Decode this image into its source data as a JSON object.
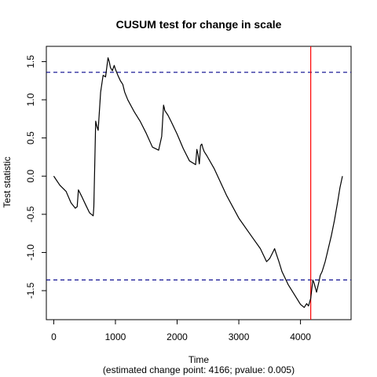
{
  "chart_data": {
    "type": "line",
    "title": "CUSUM test for change in scale",
    "xlabel": "Time",
    "subtitle": "(estimated change point: 4166; pvalue: 0.005)",
    "ylabel": "Test statistic",
    "xlim": [
      -120,
      4820
    ],
    "ylim": [
      -1.88,
      1.7
    ],
    "x_ticks": [
      0,
      1000,
      2000,
      3000,
      4000
    ],
    "y_ticks": [
      -1.5,
      -1.0,
      -0.5,
      0.0,
      0.5,
      1.0,
      1.5
    ],
    "x_tick_labels": [
      "0",
      "1000",
      "2000",
      "3000",
      "4000"
    ],
    "y_tick_labels": [
      "-1.5",
      "-1.0",
      "-0.5",
      "0.0",
      "0.5",
      "1.0",
      "1.5"
    ],
    "critical_value_upper": 1.36,
    "critical_value_lower": -1.36,
    "change_point": 4166,
    "line_color": "#000000",
    "threshold_color": "#00008B",
    "changepoint_color": "#FF0000",
    "series": [
      {
        "x": [
          0,
          100,
          200,
          280,
          350,
          380,
          400,
          450,
          520,
          580,
          640,
          650,
          680,
          700,
          720,
          760,
          800,
          840,
          880,
          900,
          920,
          950,
          980,
          1000,
          1040,
          1080,
          1120,
          1150,
          1200,
          1300,
          1400,
          1500,
          1600,
          1700,
          1750,
          1780,
          1790,
          1800,
          1850,
          1900,
          2000,
          2100,
          2200,
          2300,
          2320,
          2340,
          2360,
          2380,
          2400,
          2420,
          2440,
          2480,
          2600,
          2800,
          3000,
          3200,
          3350,
          3450,
          3500,
          3550,
          3580,
          3600,
          3650,
          3700,
          3800,
          3900,
          4000,
          4060,
          4100,
          4130,
          4166,
          4200,
          4220,
          4260,
          4300,
          4320,
          4350,
          4400,
          4450,
          4500,
          4550,
          4600,
          4640,
          4680
        ],
        "y": [
          0.0,
          -0.12,
          -0.2,
          -0.35,
          -0.42,
          -0.4,
          -0.18,
          -0.26,
          -0.38,
          -0.48,
          -0.52,
          -0.4,
          0.72,
          0.65,
          0.6,
          1.1,
          1.32,
          1.3,
          1.55,
          1.5,
          1.42,
          1.38,
          1.45,
          1.4,
          1.32,
          1.25,
          1.2,
          1.1,
          1.0,
          0.85,
          0.72,
          0.56,
          0.38,
          0.34,
          0.52,
          0.93,
          0.9,
          0.86,
          0.8,
          0.72,
          0.55,
          0.36,
          0.2,
          0.15,
          0.35,
          0.28,
          0.16,
          0.4,
          0.42,
          0.36,
          0.32,
          0.27,
          0.1,
          -0.25,
          -0.55,
          -0.78,
          -0.95,
          -1.12,
          -1.08,
          -1.0,
          -0.95,
          -1.0,
          -1.12,
          -1.25,
          -1.42,
          -1.55,
          -1.68,
          -1.72,
          -1.67,
          -1.7,
          -1.6,
          -1.36,
          -1.4,
          -1.52,
          -1.38,
          -1.3,
          -1.25,
          -1.12,
          -0.95,
          -0.78,
          -0.58,
          -0.35,
          -0.15,
          0.0
        ]
      }
    ]
  }
}
